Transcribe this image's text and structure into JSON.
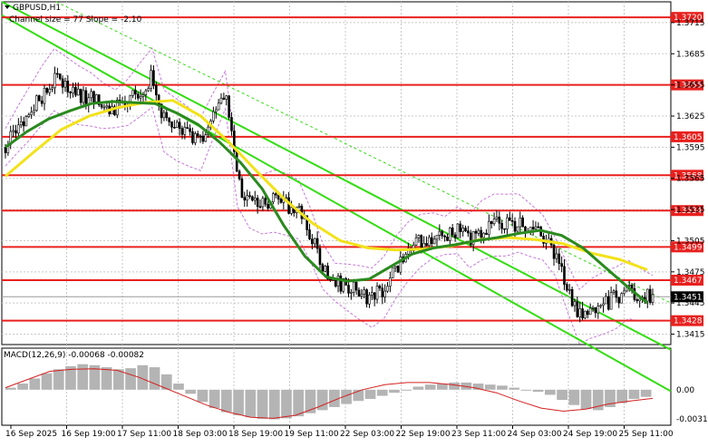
{
  "header": {
    "symbol": "GBPUSD,H1",
    "channel_info": "Channel size = 77 Slope = -2.10"
  },
  "macd_label": "MACD(12,26,9) -0.00068 -0.00082",
  "colors": {
    "background": "#ffffff",
    "grid": "#c8c8c8",
    "level_line": "#e8201e",
    "level_tag": "#e8201e",
    "candle": "#000000",
    "ma_fast": "#2a8a1e",
    "ma_slow": "#f2e21a",
    "channel": "#33dd11",
    "bollinger": "#c77ad9",
    "macd_hist": "#b4b4b4",
    "macd_signal": "#d42020"
  },
  "chart_data": {
    "type": "candlestick",
    "ylim": [
      1.3405,
      1.3735
    ],
    "price_ticks": [
      "1.3715",
      "1.3685",
      "1.3655",
      "1.3625",
      "1.3595",
      "1.3565",
      "1.3535",
      "1.3505",
      "1.3475",
      "1.3445",
      "1.3415"
    ],
    "levels": [
      "1.3720",
      "1.3655",
      "1.3605",
      "1.3568",
      "1.3534",
      "1.3499",
      "1.3467",
      "1.3428"
    ],
    "current_price": "1.3451",
    "x_labels": [
      "16 Sep 2025",
      "16 Sep 19:00",
      "17 Sep 11:00",
      "18 Sep 03:00",
      "18 Sep 19:00",
      "19 Sep 11:00",
      "22 Sep 03:00",
      "22 Sep 19:00",
      "23 Sep 11:00",
      "24 Sep 03:00",
      "24 Sep 19:00",
      "25 Sep 11:00"
    ],
    "close_path": [
      1.3595,
      1.3612,
      1.3628,
      1.3645,
      1.366,
      1.3652,
      1.3645,
      1.3641,
      1.3635,
      1.3632,
      1.3638,
      1.365,
      1.3662,
      1.362,
      1.3612,
      1.3605,
      1.3598,
      1.3625,
      1.365,
      1.356,
      1.3543,
      1.354,
      1.3543,
      1.354,
      1.3535,
      1.351,
      1.348,
      1.3465,
      1.346,
      1.3455,
      1.345,
      1.346,
      1.348,
      1.3495,
      1.3505,
      1.351,
      1.351,
      1.3515,
      1.3505,
      1.3515,
      1.352,
      1.352,
      1.3522,
      1.3515,
      1.3508,
      1.349,
      1.346,
      1.3432,
      1.344,
      1.3445,
      1.345,
      1.3458,
      1.3453,
      1.345
    ],
    "ma_fast": [
      1.3595,
      1.361,
      1.3622,
      1.363,
      1.3637,
      1.3639,
      1.3638,
      1.3637,
      1.3628,
      1.3617,
      1.36,
      1.358,
      1.3555,
      1.352,
      1.349,
      1.347,
      1.3466,
      1.3468,
      1.348,
      1.3492,
      1.3498,
      1.3501,
      1.3505,
      1.3508,
      1.3512,
      1.3515,
      1.351,
      1.3498,
      1.348,
      1.3462,
      1.3445
    ],
    "ma_slow": [
      1.3567,
      1.359,
      1.3612,
      1.3625,
      1.3633,
      1.3638,
      1.364,
      1.3625,
      1.36,
      1.3572,
      1.3545,
      1.3522,
      1.3505,
      1.3498,
      1.3496,
      1.3497,
      1.35,
      1.3506,
      1.3508,
      1.3506,
      1.3502,
      1.3493,
      1.3487,
      1.3477
    ],
    "macd_hist": [
      0.0002,
      0.0006,
      0.0011,
      0.0016,
      0.002,
      0.0023,
      0.0025,
      0.0024,
      0.0022,
      0.002,
      0.0021,
      0.0024,
      0.0022,
      0.0015,
      0.0006,
      -0.0004,
      -0.0012,
      -0.0018,
      -0.0022,
      -0.0025,
      -0.0027,
      -0.00285,
      -0.0029,
      -0.0028,
      -0.0026,
      -0.0023,
      -0.002,
      -0.0017,
      -0.0014,
      -0.0011,
      -0.0009,
      -0.0006,
      -0.0003,
      0.0,
      0.0003,
      0.0005,
      0.0006,
      0.0007,
      0.0007,
      0.0006,
      0.0005,
      0.0004,
      0.0002,
      0.0,
      -0.0002,
      -0.0005,
      -0.001,
      -0.0015,
      -0.0019,
      -0.002,
      -0.0017,
      -0.0013,
      -0.0009,
      -0.0007
    ],
    "macd_signal": [
      0.0002,
      0.001,
      0.0018,
      0.002,
      0.00205,
      0.0019,
      0.0012,
      0.0003,
      -0.0006,
      -0.0015,
      -0.0022,
      -0.0027,
      -0.0028,
      -0.0025,
      -0.0017,
      -0.0008,
      0.0,
      0.0005,
      0.0007,
      0.0007,
      0.0005,
      0.0002,
      -0.0003,
      -0.0011,
      -0.0018,
      -0.0021,
      -0.0019,
      -0.0014,
      -0.0011,
      -0.00085
    ],
    "macd_ticks": [
      "0.00",
      "-0.00312"
    ]
  }
}
